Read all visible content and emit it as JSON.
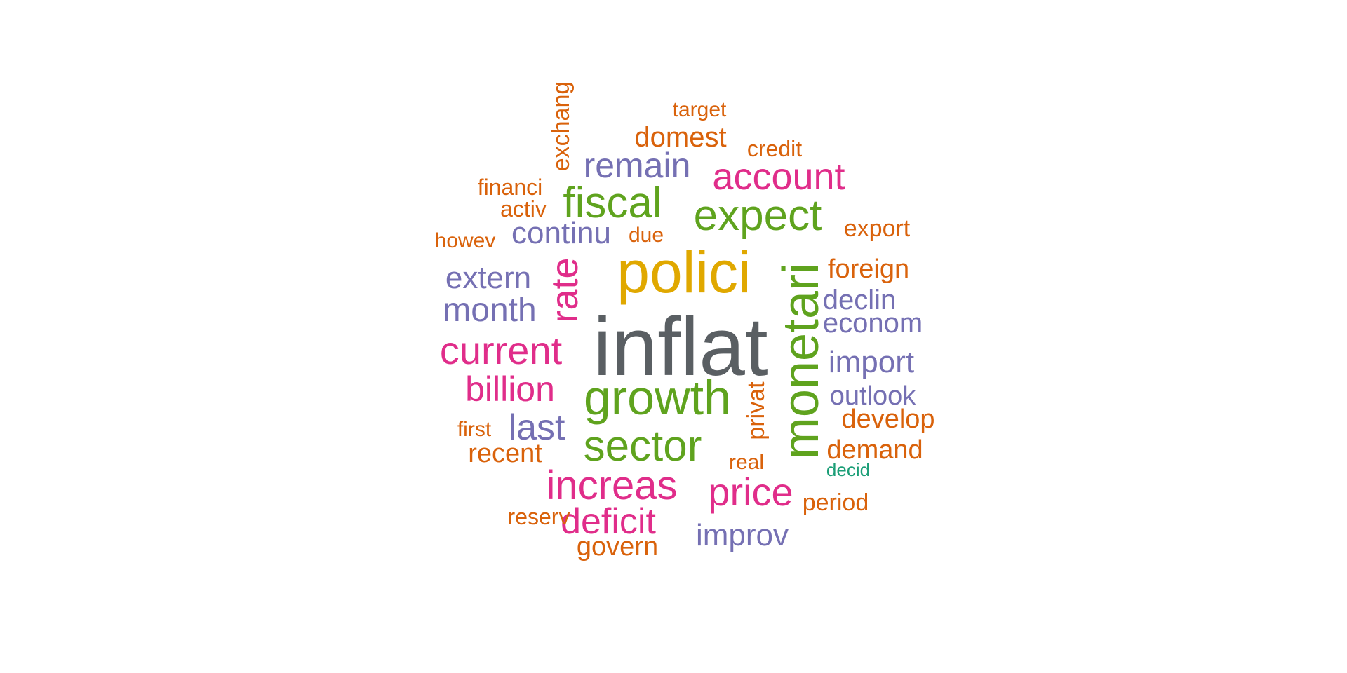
{
  "chart_data": {
    "type": "wordcloud",
    "palette": {
      "dark_gray": "#5a5f63",
      "gold": "#e0a800",
      "green": "#5fa31e",
      "magenta": "#e02d8a",
      "purple": "#7570b3",
      "orange": "#d9620b",
      "teal": "#1b9e77"
    },
    "words": [
      {
        "text": "inflat",
        "color": "#5a5f63"
      },
      {
        "text": "polici",
        "color": "#e0a800"
      },
      {
        "text": "growth",
        "color": "#5fa31e"
      },
      {
        "text": "monetari",
        "color": "#5fa31e"
      },
      {
        "text": "expect",
        "color": "#5fa31e"
      },
      {
        "text": "sector",
        "color": "#5fa31e"
      },
      {
        "text": "fiscal",
        "color": "#5fa31e"
      },
      {
        "text": "rate",
        "color": "#e02d8a"
      },
      {
        "text": "current",
        "color": "#e02d8a"
      },
      {
        "text": "increas",
        "color": "#e02d8a"
      },
      {
        "text": "price",
        "color": "#e02d8a"
      },
      {
        "text": "account",
        "color": "#e02d8a"
      },
      {
        "text": "deficit",
        "color": "#e02d8a"
      },
      {
        "text": "billion",
        "color": "#e02d8a"
      },
      {
        "text": "remain",
        "color": "#7570b3"
      },
      {
        "text": "month",
        "color": "#7570b3"
      },
      {
        "text": "last",
        "color": "#7570b3"
      },
      {
        "text": "extern",
        "color": "#7570b3"
      },
      {
        "text": "continu",
        "color": "#7570b3"
      },
      {
        "text": "import",
        "color": "#7570b3"
      },
      {
        "text": "improv",
        "color": "#7570b3"
      },
      {
        "text": "econom",
        "color": "#7570b3"
      },
      {
        "text": "declin",
        "color": "#7570b3"
      },
      {
        "text": "outlook",
        "color": "#7570b3"
      },
      {
        "text": "exchang",
        "color": "#d9620b"
      },
      {
        "text": "domest",
        "color": "#d9620b"
      },
      {
        "text": "foreign",
        "color": "#d9620b"
      },
      {
        "text": "demand",
        "color": "#d9620b"
      },
      {
        "text": "develop",
        "color": "#d9620b"
      },
      {
        "text": "govern",
        "color": "#d9620b"
      },
      {
        "text": "recent",
        "color": "#d9620b"
      },
      {
        "text": "privat",
        "color": "#d9620b"
      },
      {
        "text": "financi",
        "color": "#d9620b"
      },
      {
        "text": "export",
        "color": "#d9620b"
      },
      {
        "text": "credit",
        "color": "#d9620b"
      },
      {
        "text": "target",
        "color": "#d9620b"
      },
      {
        "text": "activ",
        "color": "#d9620b"
      },
      {
        "text": "due",
        "color": "#d9620b"
      },
      {
        "text": "howev",
        "color": "#d9620b"
      },
      {
        "text": "first",
        "color": "#d9620b"
      },
      {
        "text": "real",
        "color": "#d9620b"
      },
      {
        "text": "reserv",
        "color": "#d9620b"
      },
      {
        "text": "period",
        "color": "#d9620b"
      },
      {
        "text": "decid",
        "color": "#1b9e77"
      }
    ]
  }
}
